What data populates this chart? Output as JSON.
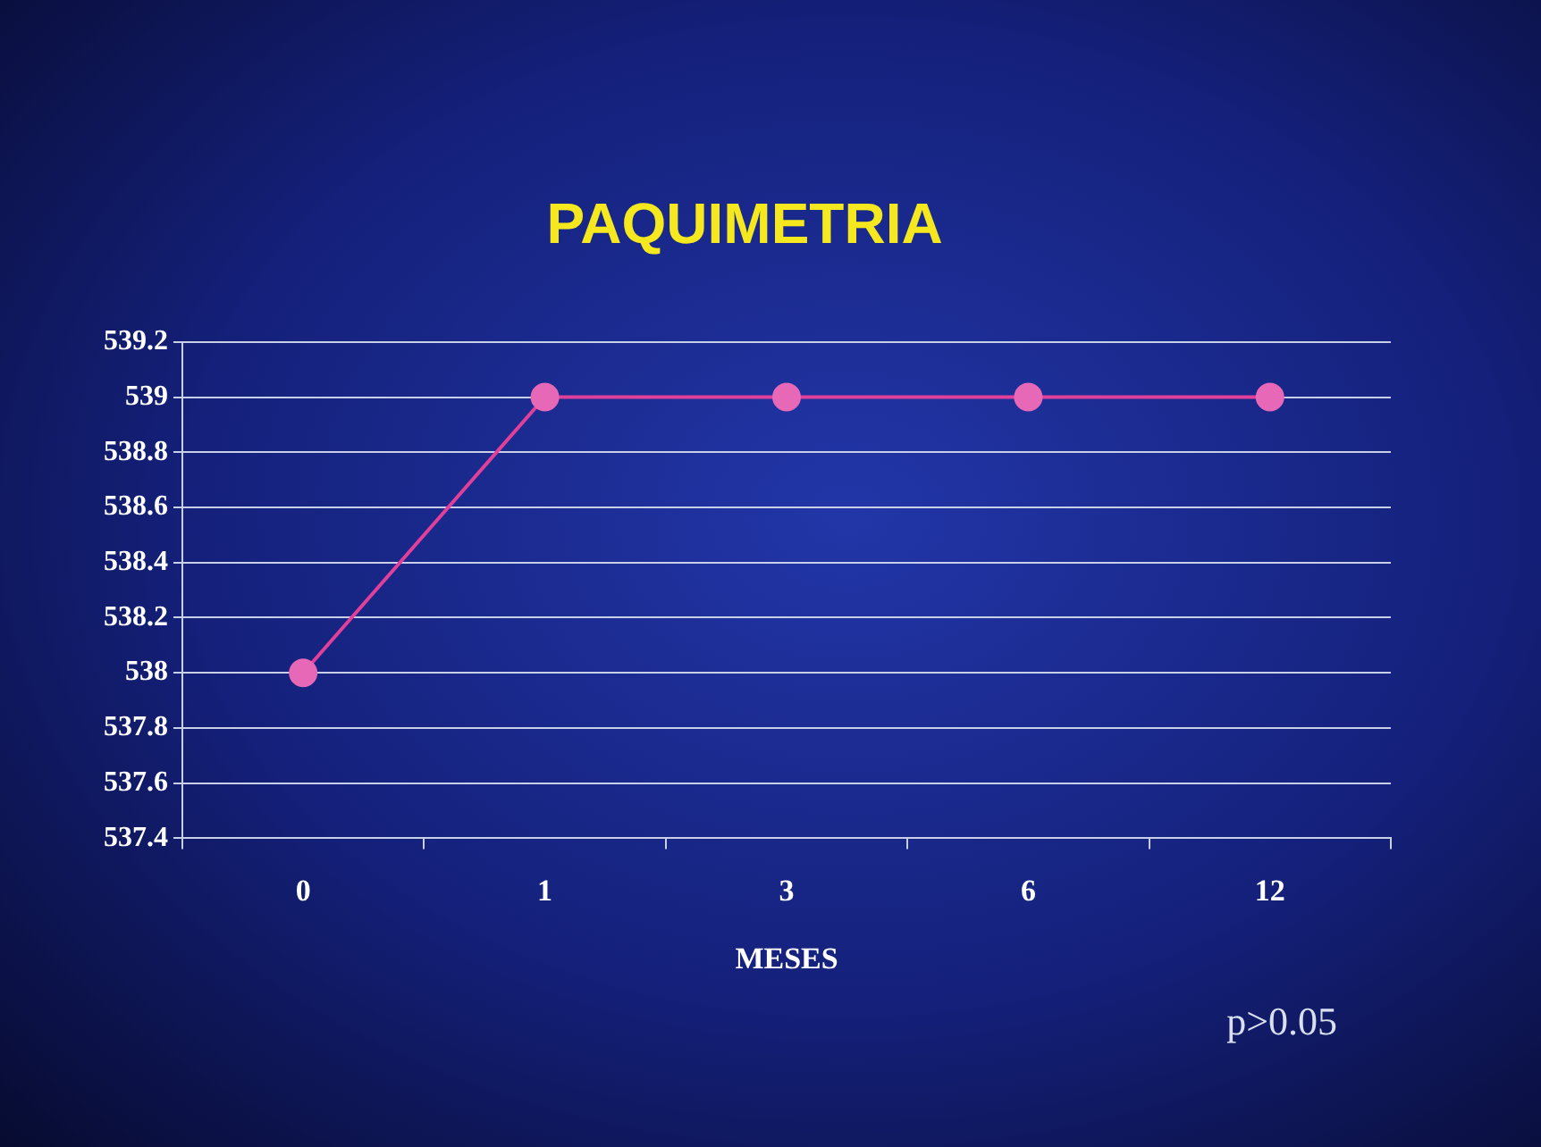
{
  "chart_data": {
    "type": "line",
    "title": "PAQUIMETRIA",
    "xlabel": "MESES",
    "categories": [
      "0",
      "1",
      "3",
      "6",
      "12"
    ],
    "series": [
      {
        "color": "#e0409a",
        "values": [
          538,
          539,
          539,
          539,
          539
        ]
      }
    ],
    "ylim": [
      537.4,
      539.2
    ],
    "yticks": [
      537.4,
      537.6,
      537.8,
      538,
      538.2,
      538.4,
      538.6,
      538.8,
      539,
      539.2
    ],
    "grid": "y",
    "legend": false,
    "marker": "circle",
    "line_style": "solid",
    "annotations": [
      "p>0.05"
    ]
  }
}
